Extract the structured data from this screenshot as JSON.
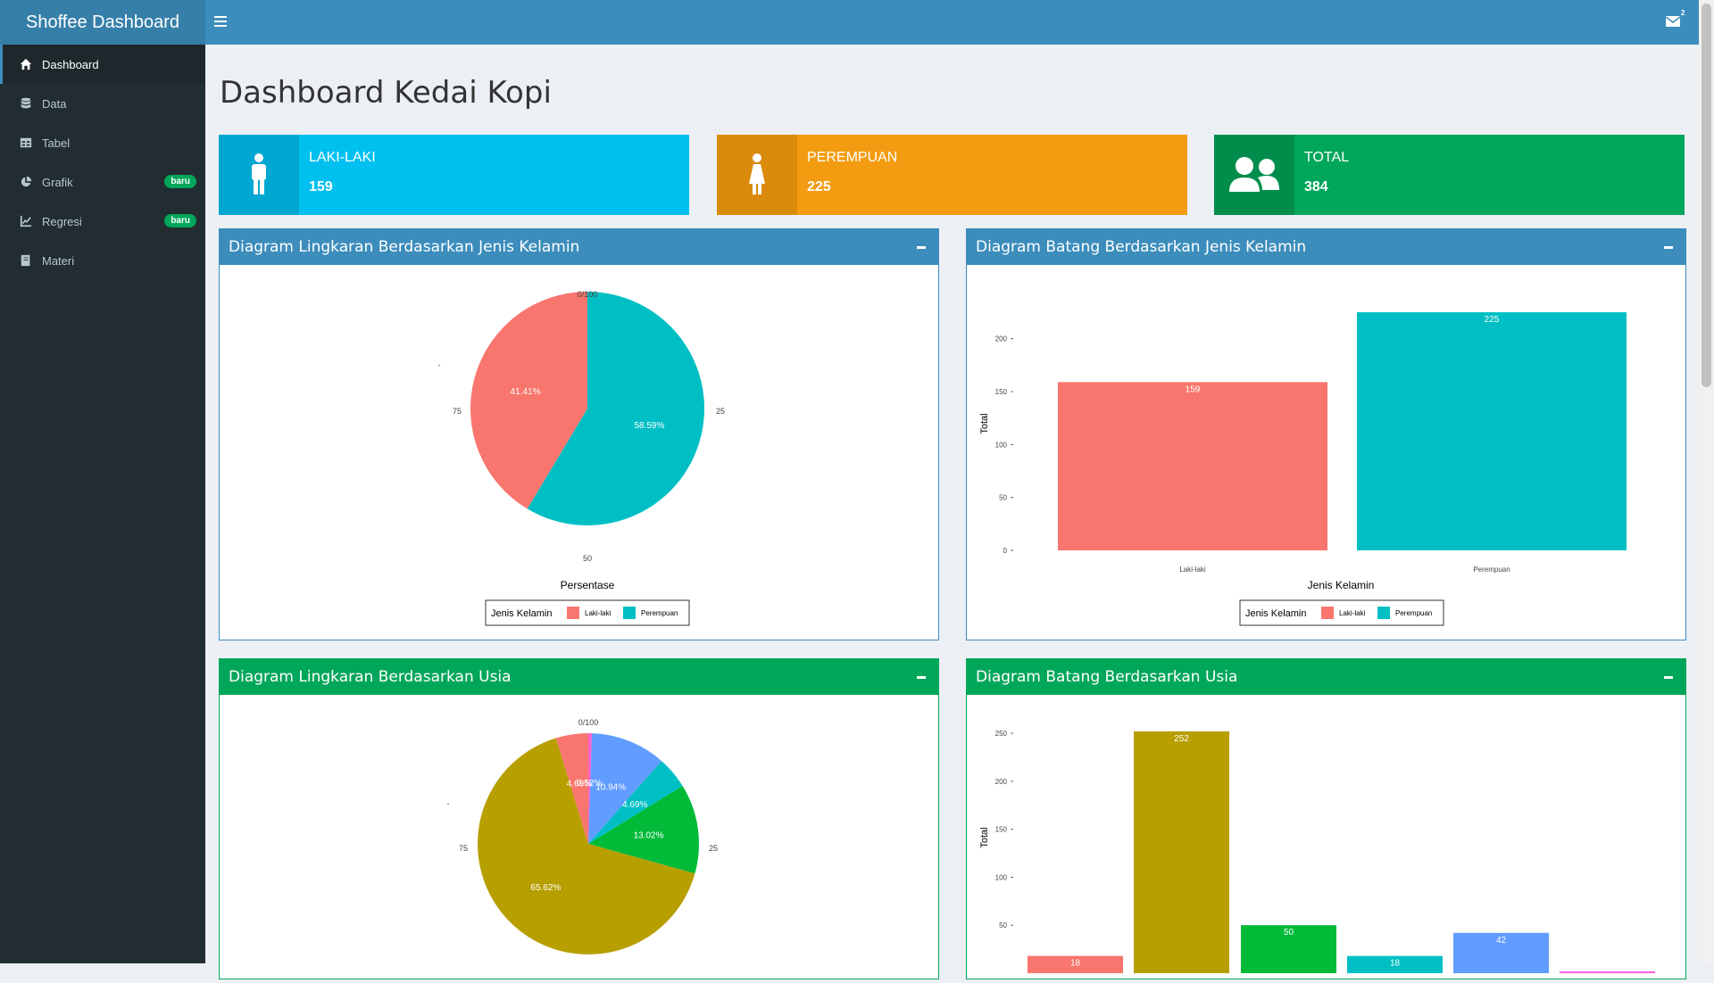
{
  "header": {
    "logo": "Shoffee Dashboard",
    "mail_count": "2"
  },
  "sidebar": {
    "items": [
      {
        "label": "Dashboard",
        "icon": "home-icon"
      },
      {
        "label": "Data",
        "icon": "database-icon"
      },
      {
        "label": "Tabel",
        "icon": "table-icon"
      },
      {
        "label": "Grafik",
        "icon": "pie-chart-icon",
        "badge": "baru"
      },
      {
        "label": "Regresi",
        "icon": "line-chart-icon",
        "badge": "baru"
      },
      {
        "label": "Materi",
        "icon": "book-icon"
      }
    ]
  },
  "page_title": "Dashboard Kedai Kopi",
  "infoboxes": [
    {
      "label": "LAKI-LAKI",
      "value": "159",
      "color": "#00c0ef",
      "icon_bg": "#00a7d0",
      "icon": "male-icon"
    },
    {
      "label": "PEREMPUAN",
      "value": "225",
      "color": "#f39c12",
      "icon_bg": "#db8b0b",
      "icon": "female-icon"
    },
    {
      "label": "TOTAL",
      "value": "384",
      "color": "#00a65a",
      "icon_bg": "#008d4c",
      "icon": "users-icon"
    }
  ],
  "boxes": {
    "pie_gender": "Diagram Lingkaran Berdasarkan Jenis Kelamin",
    "bar_gender": "Diagram Batang Berdasarkan Jenis Kelamin",
    "pie_age": "Diagram Lingkaran Berdasarkan Usia",
    "bar_age": "Diagram Batang Berdasarkan Usia"
  },
  "chart_data": [
    {
      "type": "pie",
      "title": "",
      "xlabel": "Persentase",
      "axis_ticks": [
        "0/100",
        "25",
        "50",
        "75"
      ],
      "y_tick": "-",
      "legend_title": "Jenis Kelamin",
      "legend_position": "bottom",
      "categories": [
        "Laki-laki",
        "Perempuan"
      ],
      "values": [
        41.41,
        58.59
      ],
      "labels": [
        "41.41%",
        "58.59%"
      ],
      "colors": [
        "#f8766d",
        "#00bfc4"
      ]
    },
    {
      "type": "bar",
      "title": "",
      "xlabel": "Jenis Kelamin",
      "ylabel": "Total",
      "categories": [
        "Laki-laki",
        "Perempuan"
      ],
      "values": [
        159,
        225
      ],
      "yticks": [
        0,
        50,
        100,
        150,
        200
      ],
      "ylim": [
        0,
        236
      ],
      "legend_title": "Jenis Kelamin",
      "legend_position": "bottom",
      "colors": [
        "#f8766d",
        "#00bfc4"
      ]
    },
    {
      "type": "pie",
      "title": "",
      "axis_ticks": [
        "0/100",
        "25",
        "75"
      ],
      "y_tick": "-",
      "values": [
        0.52,
        10.94,
        4.69,
        13.02,
        65.62,
        4.69
      ],
      "labels": [
        "0.52%",
        "10.94%",
        "4.69%",
        "13.02%",
        "65.62%",
        "4.69%"
      ],
      "colors": [
        "#ff61cc",
        "#619cff",
        "#00bfc4",
        "#00ba38",
        "#b79f00",
        "#f8766d"
      ]
    },
    {
      "type": "bar",
      "title": "",
      "ylabel": "Total",
      "values": [
        18,
        252,
        50,
        18,
        42,
        2
      ],
      "labels": [
        "18",
        "252",
        "50",
        "18",
        "42",
        ""
      ],
      "yticks": [
        50,
        100,
        150,
        200,
        250
      ],
      "colors": [
        "#f8766d",
        "#b79f00",
        "#00ba38",
        "#00bfc4",
        "#619cff",
        "#f564e3"
      ]
    }
  ]
}
